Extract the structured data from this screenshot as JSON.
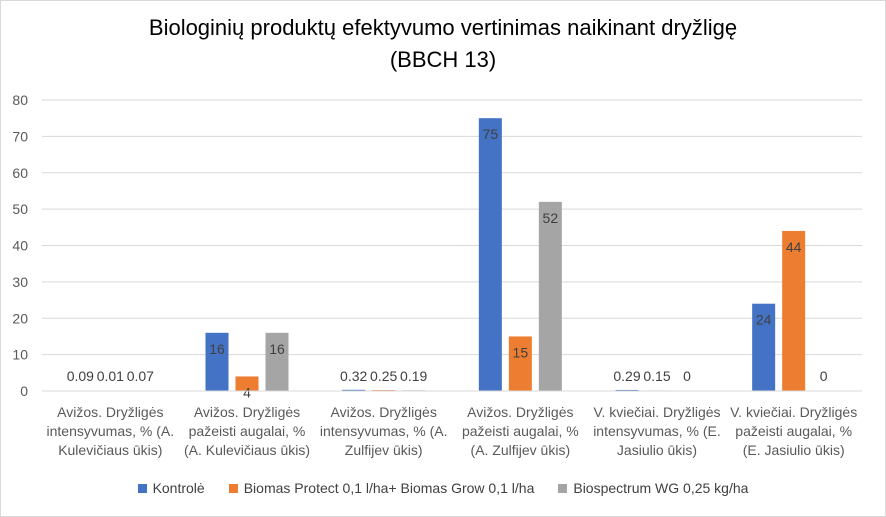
{
  "chart_data": {
    "type": "bar",
    "title": [
      "Biologinių produktų efektyvumo vertinimas naikinant dryžligę",
      "(BBCH 13)"
    ],
    "categories": [
      [
        "Avižos. Dryžligės",
        "intensyvumas, % (A.",
        "Kulevičiaus ūkis)"
      ],
      [
        "Avižos. Dryžligės",
        "pažeisti augalai, %",
        "(A. Kulevičiaus ūkis)"
      ],
      [
        "Avižos. Dryžligės",
        "intensyvumas, % (A.",
        "Zulfijev ūkis)"
      ],
      [
        "Avižos. Dryžligės",
        "pažeisti augalai, %",
        "(A. Zulfijev ūkis)"
      ],
      [
        "V. kviečiai. Dryžligės",
        "intensyvumas, % (E.",
        "Jasiulio ūkis)"
      ],
      [
        "V. kviečiai. Dryžligės",
        "pažeisti augalai, %",
        "(E. Jasiulio ūkis)"
      ]
    ],
    "series": [
      {
        "name": "Kontrolė",
        "color": "#4472C4",
        "values": [
          0.09,
          16,
          0.32,
          75,
          0.29,
          24
        ]
      },
      {
        "name": "Biomas Protect 0,1 l/ha+ Biomas Grow 0,1 l/ha",
        "color": "#ED7D31",
        "values": [
          0.01,
          4,
          0.25,
          15,
          0.15,
          44
        ]
      },
      {
        "name": "Biospectrum WG 0,25 kg/ha",
        "color": "#A5A5A5",
        "values": [
          0.07,
          16,
          0.19,
          52,
          0,
          0
        ]
      }
    ],
    "ylim": [
      0,
      80
    ],
    "yticks": [
      0,
      10,
      20,
      30,
      40,
      50,
      60,
      70,
      80
    ],
    "grid": true,
    "legend": "bottom"
  }
}
